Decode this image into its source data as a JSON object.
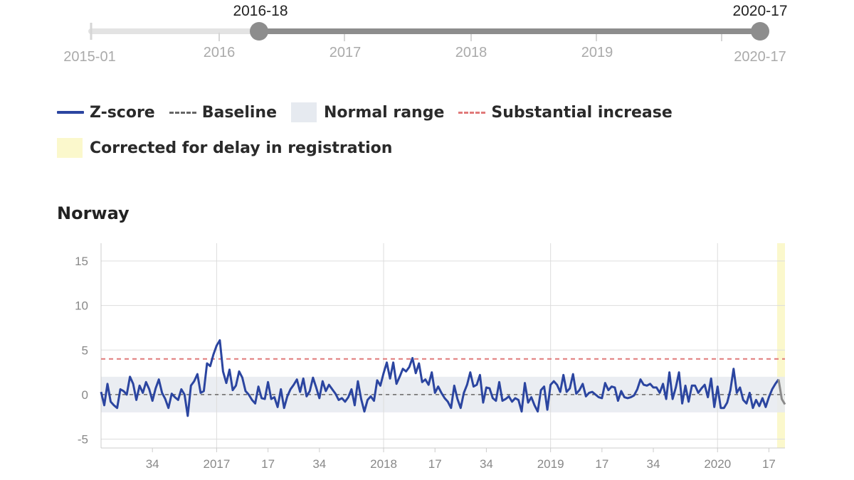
{
  "slider": {
    "start_label": "2015-01",
    "end_label": "2020-17",
    "year_labels": [
      "2016",
      "2017",
      "2018",
      "2019"
    ],
    "selected_start": "2016-18",
    "selected_end": "2020-17",
    "selected_start_fraction": 0.2,
    "selected_end_fraction": 1.0
  },
  "legend": {
    "zscore": "Z-score",
    "baseline": "Baseline",
    "normal_range": "Normal range",
    "substantial_increase": "Substantial increase",
    "corrected": "Corrected for delay in registration"
  },
  "colors": {
    "zscore": "#2b45a0",
    "baseline": "#666666",
    "normal_range": "#e6eaf0",
    "substantial_increase": "#e07a7a",
    "corrected": "#fbf8cc",
    "corrected_line": "#8a8a8a"
  },
  "chart_data": {
    "type": "line",
    "title": "Norway",
    "x_unit": "ISO week",
    "x_start": "2016-18",
    "x_end": "2020-17",
    "x_tick_labels": [
      "34",
      "2017",
      "17",
      "34",
      "2018",
      "17",
      "34",
      "2019",
      "17",
      "34",
      "2020",
      "17"
    ],
    "y_ticks": [
      15,
      10,
      5,
      0,
      -5
    ],
    "ylim": [
      -6,
      17
    ],
    "baseline": 0,
    "normal_range": [
      -2,
      2
    ],
    "substantial_increase": 4,
    "corrected_from_week": "2020-15",
    "series": [
      {
        "name": "Z-score",
        "values": [
          0.3,
          -1.2,
          1.2,
          -0.8,
          -1.2,
          -1.5,
          0.6,
          0.4,
          0,
          2,
          1.2,
          -0.6,
          1,
          0.2,
          1.4,
          0.6,
          -0.7,
          0.7,
          1.7,
          0.2,
          -0.5,
          -1.5,
          0.1,
          -0.3,
          -0.6,
          0.6,
          0,
          -2.4,
          1,
          1.5,
          2.3,
          0.2,
          0.4,
          3.5,
          3.2,
          4.5,
          5.5,
          6.1,
          2.6,
          1.3,
          2.8,
          0.5,
          1,
          2.6,
          1.9,
          0.4,
          0,
          -0.6,
          -1,
          0.9,
          -0.4,
          -0.5,
          1.4,
          -0.5,
          -0.3,
          -1.4,
          0.6,
          -1.5,
          -0.2,
          0.6,
          1.1,
          1.7,
          0.3,
          1.8,
          -0.2,
          0.4,
          1.9,
          0.8,
          -0.4,
          1.5,
          0.4,
          1.1,
          0.6,
          0.1,
          -0.6,
          -0.4,
          -0.8,
          -0.3,
          0.6,
          -1.2,
          1.5,
          -0.5,
          -1.9,
          -0.6,
          -0.2,
          -0.7,
          1.6,
          1,
          2.4,
          3.6,
          1.8,
          3.6,
          1.2,
          2,
          2.9,
          2.6,
          3.1,
          4.1,
          2.4,
          3.5,
          1.4,
          1.7,
          1.1,
          2.5,
          0.2,
          0.9,
          0.2,
          -0.4,
          -0.8,
          -1.5,
          1,
          -0.5,
          -1.5,
          0.2,
          1.1,
          2.5,
          0.9,
          1.1,
          2.2,
          -0.9,
          0.8,
          0.7,
          -0.4,
          -0.7,
          1.4,
          -0.7,
          -0.5,
          -0.2,
          -0.8,
          -0.4,
          -0.6,
          -1.9,
          1.3,
          -0.9,
          -0.3,
          -1.2,
          -1.9,
          0.5,
          0.9,
          -1.7,
          1.1,
          1.5,
          1.1,
          0.3,
          2.2,
          0.3,
          0.7,
          2.3,
          0.1,
          0.5,
          1.2,
          -0.2,
          0.2,
          0.3,
          0,
          -0.3,
          -0.4,
          1.3,
          0.5,
          0.9,
          0.8,
          -0.7,
          0.4,
          -0.3,
          -0.4,
          -0.3,
          -0.1,
          0.6,
          1.7,
          1.1,
          1,
          1.2,
          0.8,
          0.8,
          0.2,
          1.2,
          -0.5,
          2.5,
          -0.5,
          0.8,
          2.5,
          -1,
          1,
          -0.8,
          1,
          1,
          0.2,
          0.7,
          1.1,
          -0.3,
          1.8,
          -1.4,
          0.9,
          -1.5,
          -1.5,
          -0.9,
          0.5,
          2.9,
          0.2,
          0.8,
          -0.6,
          -1,
          0.2,
          -1.5,
          -0.6,
          -1.3,
          -0.4,
          -1.4,
          -0.3,
          0.6,
          1.2,
          1.7,
          -0.5,
          -1.1
        ]
      }
    ]
  }
}
